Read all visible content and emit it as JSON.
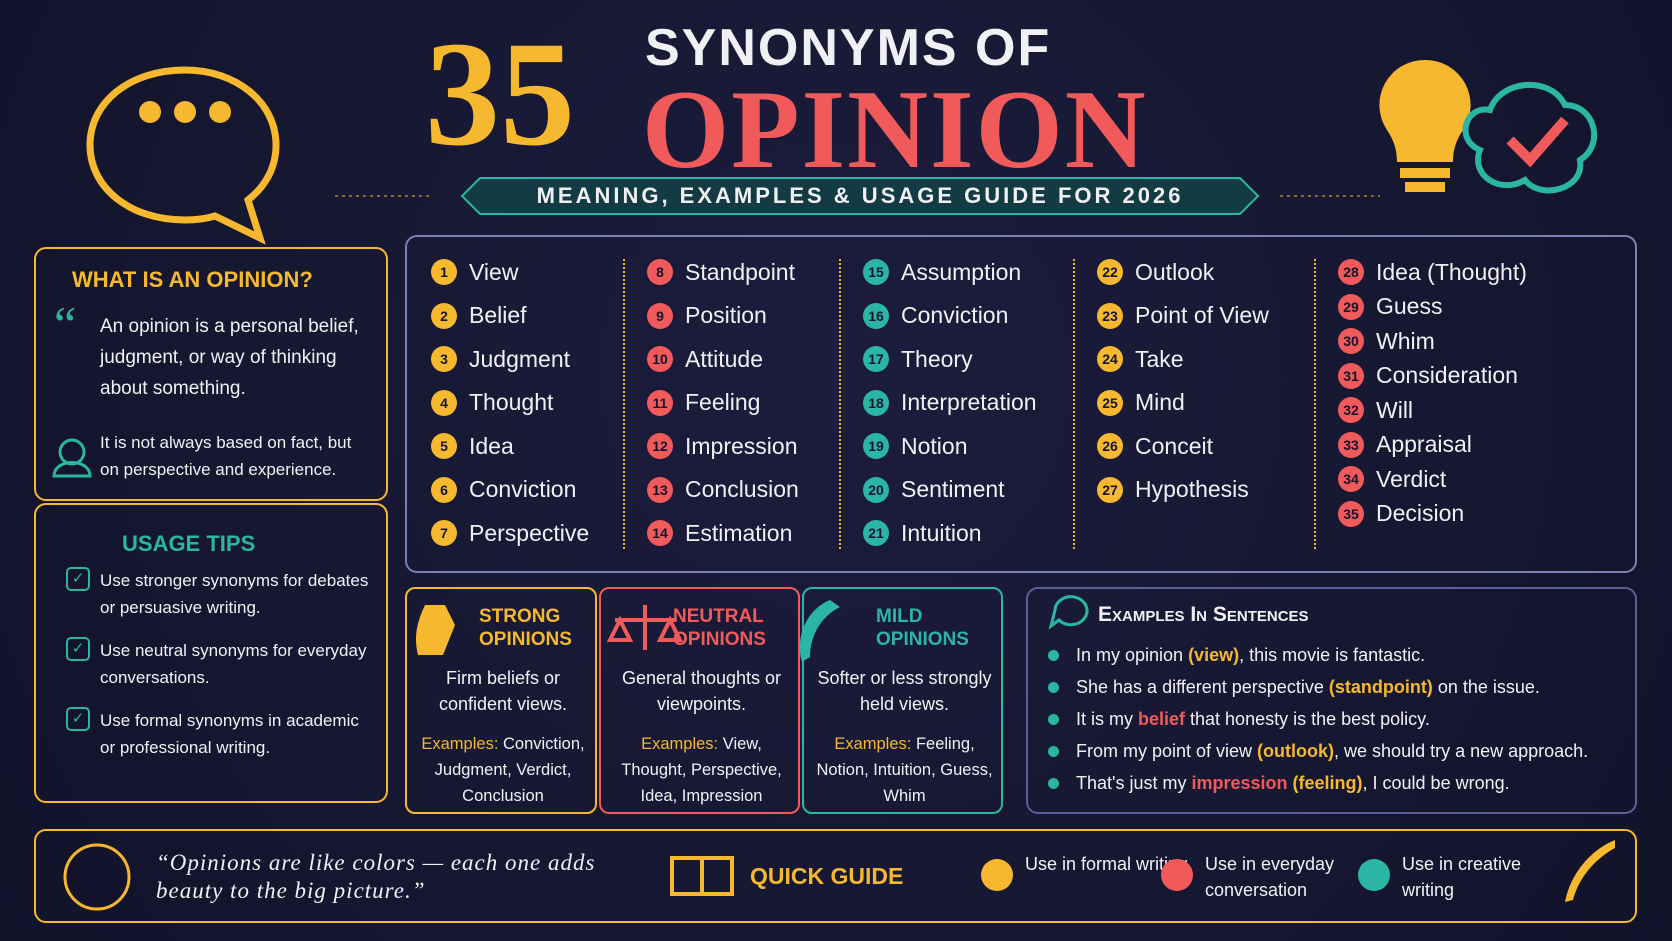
{
  "header": {
    "number": "35",
    "title_top": "SYNONYMS OF",
    "title_main": "OPINION",
    "subtitle": "MEANING, EXAMPLES & USAGE GUIDE FOR 2026"
  },
  "definition": {
    "heading": "WHAT IS AN OPINION?",
    "text": "An opinion is a personal belief, judgment, or way of thinking about something.",
    "note": "It is not always based on fact, but on perspective and experience."
  },
  "usage_tips": {
    "heading": "USAGE TIPS",
    "items": [
      "Use stronger synonyms for debates or persuasive writing.",
      "Use neutral synonyms for everyday conversations.",
      "Use formal synonyms in academic or professional writing."
    ]
  },
  "synonyms": {
    "columns": [
      {
        "color": "#f5b82e",
        "items": [
          {
            "number": 1,
            "word": "View"
          },
          {
            "number": 2,
            "word": "Belief"
          },
          {
            "number": 3,
            "word": "Judgment"
          },
          {
            "number": 4,
            "word": "Thought"
          },
          {
            "number": 5,
            "word": "Idea"
          },
          {
            "number": 6,
            "word": "Conviction"
          },
          {
            "number": 7,
            "word": "Perspective"
          }
        ]
      },
      {
        "color": "#f05a5a",
        "items": [
          {
            "number": 8,
            "word": "Standpoint"
          },
          {
            "number": 9,
            "word": "Position"
          },
          {
            "number": 10,
            "word": "Attitude"
          },
          {
            "number": 11,
            "word": "Feeling"
          },
          {
            "number": 12,
            "word": "Impression"
          },
          {
            "number": 13,
            "word": "Conclusion"
          },
          {
            "number": 14,
            "word": "Estimation"
          }
        ]
      },
      {
        "color": "#2bb5a5",
        "items": [
          {
            "number": 15,
            "word": "Assumption"
          },
          {
            "number": 16,
            "word": "Conviction"
          },
          {
            "number": 17,
            "word": "Theory"
          },
          {
            "number": 18,
            "word": "Interpretation"
          },
          {
            "number": 19,
            "word": "Notion"
          },
          {
            "number": 20,
            "word": "Sentiment"
          },
          {
            "number": 21,
            "word": "Intuition"
          }
        ]
      },
      {
        "color": "#f5b82e",
        "items": [
          {
            "number": 22,
            "word": "Outlook"
          },
          {
            "number": 23,
            "word": "Point of View"
          },
          {
            "number": 24,
            "word": "Take"
          },
          {
            "number": 25,
            "word": "Mind"
          },
          {
            "number": 26,
            "word": "Conceit"
          },
          {
            "number": 27,
            "word": "Hypothesis"
          }
        ]
      },
      {
        "color": "#f05a5a",
        "items": [
          {
            "number": 28,
            "word": "Idea (Thought)"
          },
          {
            "number": 29,
            "word": "Guess"
          },
          {
            "number": 30,
            "word": "Whim"
          },
          {
            "number": 31,
            "word": "Consideration"
          },
          {
            "number": 32,
            "word": "Will"
          },
          {
            "number": 33,
            "word": "Appraisal"
          },
          {
            "number": 34,
            "word": "Verdict"
          },
          {
            "number": 35,
            "word": "Decision"
          }
        ]
      }
    ]
  },
  "categories": [
    {
      "title": "STRONG OPINIONS",
      "color": "#f5b82e",
      "description": "Firm beliefs or confident views.",
      "examples_label": "Examples:",
      "examples": "Conviction, Judgment, Verdict, Conclusion"
    },
    {
      "title": "NEUTRAL OPINIONS",
      "color": "#f05a5a",
      "description": "General thoughts or viewpoints.",
      "examples_label": "Examples:",
      "examples": "View, Thought, Perspective, Idea, Impression"
    },
    {
      "title": "MILD OPINIONS",
      "color": "#2bb5a5",
      "description": "Softer or less strongly held views.",
      "examples_label": "Examples:",
      "examples": "Feeling, Notion, Intuition, Guess, Whim"
    }
  ],
  "examples": {
    "heading": "Examples In Sentences",
    "sentences": [
      [
        "In my opinion ",
        {
          "text": "(view)",
          "color": "#f5b82e"
        },
        ", this movie is fantastic."
      ],
      [
        "She has a different perspective ",
        {
          "text": "(standpoint)",
          "color": "#f5b82e"
        },
        " on the issue."
      ],
      [
        "It is my ",
        {
          "text": "belief",
          "color": "#f05a5a"
        },
        " that honesty is the best policy."
      ],
      [
        "From my point of view ",
        {
          "text": "(outlook)",
          "color": "#f5b82e"
        },
        ", we should try a new approach."
      ],
      [
        "That's just my ",
        {
          "text": "impression",
          "color": "#f05a5a"
        },
        " ",
        {
          "text": "(feeling)",
          "color": "#f5b82e"
        },
        ", I could be wrong."
      ]
    ]
  },
  "footer": {
    "quote": "“Opinions are like colors — each one adds beauty to the big picture.”",
    "quick_guide": "QUICK GUIDE",
    "legend": [
      {
        "label": "Use in formal writing",
        "color": "#f5b82e"
      },
      {
        "label": "Use in everyday conversation",
        "color": "#f05a5a"
      },
      {
        "label": "Use in creative writing",
        "color": "#2bb5a5"
      }
    ]
  }
}
